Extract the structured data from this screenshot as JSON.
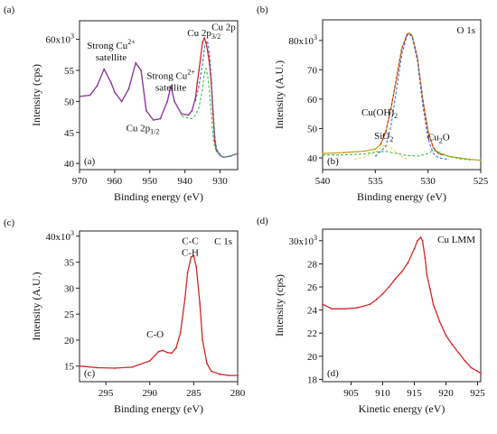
{
  "chart_data": [
    {
      "panel_label": "(a)",
      "inner_label": "(a)",
      "type": "line",
      "xlabel": "Binding energy (eV)",
      "ylabel": "Intensity (cps)",
      "y_exponent_label": "60x10",
      "y_exponent_sup": "3",
      "x_reversed": true,
      "xlim": [
        970,
        925
      ],
      "ylim": [
        39,
        63
      ],
      "x_ticks": [
        970,
        960,
        950,
        940,
        930
      ],
      "y_ticks": [
        40,
        45,
        50,
        55
      ],
      "y_top_value": 60,
      "annotations": [
        {
          "text": "Strong Cu",
          "sup": "2+",
          "line2": "satellite",
          "x": 961,
          "y": 58.5
        },
        {
          "text": "Strong Cu",
          "sup": "2+",
          "line2": "satellite",
          "x": 944,
          "y": 53.6
        },
        {
          "text": "Cu 2p",
          "sub": "1/2",
          "x": 952,
          "y": 45.2
        },
        {
          "text": "Cu 2p",
          "sub": "3/2",
          "x": 934.6,
          "y": 60.5
        },
        {
          "text": "Cu 2p",
          "x": 929,
          "y": 61.5
        }
      ],
      "series": [
        {
          "color": "#d32626",
          "x": [
            970,
            967,
            965,
            963,
            961,
            960,
            958,
            956,
            954,
            952.5,
            951,
            949,
            947,
            945,
            944,
            943,
            941,
            939,
            938,
            937,
            936.5,
            936,
            935,
            934.5,
            934,
            933.5,
            933,
            932.5,
            932,
            931.5,
            931,
            930,
            929,
            927,
            925
          ],
          "y": [
            50.8,
            51.0,
            52.5,
            55.2,
            53.0,
            51.5,
            50.0,
            52.0,
            56.2,
            55.0,
            48.5,
            47.0,
            47.2,
            50.0,
            52.5,
            50.0,
            48.0,
            47.8,
            48.5,
            50.5,
            53.0,
            55.0,
            59.5,
            60.2,
            59.5,
            58.0,
            56.0,
            53.0,
            48.0,
            43.5,
            42.0,
            41.3,
            41.0,
            41.2,
            41.6
          ]
        },
        {
          "color": "#7a3fb5",
          "x": [
            970,
            967,
            965,
            963,
            961,
            960,
            958,
            956,
            954,
            952.5,
            951,
            949,
            947,
            945,
            944,
            943,
            941,
            939,
            938,
            937
          ],
          "y": [
            50.8,
            51.0,
            52.5,
            55.2,
            53.0,
            51.5,
            50.0,
            52.0,
            56.2,
            55.0,
            48.5,
            47.0,
            47.2,
            50.0,
            52.5,
            50.0,
            48.0,
            47.8,
            48.5,
            50.5
          ]
        },
        {
          "color": "#2e8fb5",
          "x": [
            931,
            930,
            929,
            927,
            925
          ],
          "y": [
            42.0,
            41.3,
            41.0,
            41.2,
            41.6
          ]
        },
        {
          "color": "#3fbf3f",
          "x": [
            941,
            939,
            938,
            937,
            936,
            935,
            934.5,
            934,
            933.5,
            933,
            932.5,
            932,
            931.5,
            931,
            930
          ],
          "y": [
            47.7,
            47.3,
            47.2,
            47.8,
            49.0,
            52.0,
            54.5,
            55.3,
            54.0,
            51.5,
            48.0,
            44.5,
            42.5,
            42.0,
            41.5
          ]
        },
        {
          "color": "#3f6fd8",
          "x": [
            937,
            936,
            935,
            934.5,
            934,
            933.5,
            933,
            932.5,
            932,
            931.5,
            931,
            930
          ],
          "y": [
            50.0,
            52.5,
            56.0,
            58.5,
            59.8,
            59.5,
            57.5,
            54.0,
            49.0,
            44.5,
            42.3,
            41.5
          ]
        }
      ]
    },
    {
      "panel_label": "(b)",
      "inner_label": "(b)",
      "title": "O 1s",
      "type": "line",
      "xlabel": "Binding energy (eV)",
      "ylabel": "Intensity (A.U.)",
      "y_exponent_label": "80x10",
      "y_exponent_sup": "3",
      "x_reversed": true,
      "xlim": [
        540,
        525
      ],
      "ylim": [
        36,
        87
      ],
      "x_ticks": [
        540,
        535,
        530,
        525
      ],
      "y_ticks": [
        40,
        50,
        60,
        70
      ],
      "y_top_value": 80,
      "annotations": [
        {
          "text": "Cu(OH)",
          "sub": "2",
          "x": 534.6,
          "y": 54.5
        },
        {
          "text": "SiO",
          "sub": "2",
          "x": 534.2,
          "y": 46.5
        },
        {
          "text": "Cu",
          "sub": "2",
          "tail": "O",
          "x": 529.0,
          "y": 46.0
        }
      ],
      "series": [
        {
          "color": "#c8a020",
          "x": [
            540,
            538,
            536,
            535,
            534.5,
            534,
            533.5,
            533,
            532.5,
            532,
            531.8,
            531.5,
            531,
            530.5,
            530,
            529.5,
            529,
            528,
            527,
            526,
            525
          ],
          "y": [
            41.5,
            41.8,
            42.3,
            43.0,
            44.5,
            49.0,
            57.0,
            67.0,
            77.0,
            82.0,
            82.5,
            81.5,
            74.0,
            60.0,
            49.0,
            43.5,
            41.5,
            40.5,
            40.0,
            39.5,
            39.2
          ]
        },
        {
          "color": "#d32626",
          "x": [
            534.5,
            534,
            533.5,
            533,
            532.5,
            532,
            531.8,
            531.5,
            531,
            530.5,
            530,
            529.5,
            529,
            528.5
          ],
          "y": [
            44.5,
            49.0,
            57.0,
            67.0,
            77.0,
            82.0,
            82.5,
            81.5,
            74.0,
            60.0,
            49.0,
            43.5,
            41.5,
            40.8
          ]
        },
        {
          "color": "#3f6fd8",
          "x": [
            535,
            534,
            533.5,
            533,
            532.5,
            532,
            531.8,
            531.5,
            531,
            530.5,
            530,
            529.5,
            529,
            528
          ],
          "y": [
            40.5,
            44.0,
            51.0,
            63.0,
            75.0,
            81.5,
            82.3,
            81.0,
            73.0,
            58.0,
            46.5,
            41.5,
            40.0,
            39.5
          ]
        },
        {
          "color": "#3fbf3f",
          "x": [
            540,
            538,
            536,
            535,
            534,
            533,
            532,
            531,
            530,
            529.5,
            529,
            528,
            527,
            526
          ],
          "y": [
            41.0,
            41.0,
            41.3,
            42.0,
            42.2,
            41.5,
            40.8,
            40.6,
            41.5,
            42.5,
            42.0,
            40.5,
            39.7,
            39.3
          ]
        },
        {
          "color": "#f0d060",
          "x": [
            537,
            536,
            535,
            534.5,
            534,
            533.5,
            533,
            532.5,
            532
          ],
          "y": [
            39.5,
            40.3,
            42.0,
            43.5,
            44.5,
            43.5,
            42.0,
            40.5,
            39.6
          ]
        }
      ]
    },
    {
      "panel_label": "(c)",
      "inner_label": "(c)",
      "title": "C 1s",
      "type": "line",
      "xlabel": "Binding energy (eV)",
      "ylabel": "Intensity (A.U.)",
      "y_exponent_label": "40x10",
      "y_exponent_sup": "3",
      "x_reversed": true,
      "xlim": [
        298,
        280
      ],
      "ylim": [
        12,
        41
      ],
      "x_ticks": [
        295,
        290,
        285,
        280
      ],
      "y_ticks": [
        15,
        20,
        25,
        30,
        35
      ],
      "y_top_value": 40,
      "annotations": [
        {
          "text": "C-C",
          "line2": "C-H",
          "x": 285.4,
          "y": 38.5
        },
        {
          "text": "C-O",
          "x": 289.4,
          "y": 20.5
        }
      ],
      "series": [
        {
          "color": "#d32626",
          "x": [
            298,
            296,
            294,
            292,
            290,
            289,
            288.5,
            288,
            287.5,
            287,
            286.5,
            286,
            285.7,
            285.3,
            285,
            284.7,
            284.3,
            284,
            283.5,
            283,
            282,
            281,
            280
          ],
          "y": [
            15.0,
            14.7,
            14.6,
            14.8,
            16.0,
            17.8,
            18.0,
            17.6,
            17.5,
            18.5,
            21.5,
            28.0,
            33.0,
            36.0,
            36.2,
            34.0,
            27.0,
            20.0,
            15.5,
            14.0,
            13.4,
            13.2,
            13.2
          ]
        }
      ]
    },
    {
      "panel_label": "(d)",
      "inner_label": "(d)",
      "title": "Cu LMM",
      "type": "line",
      "xlabel": "Kinetic energy (eV)",
      "ylabel": "Intensity (cps)",
      "y_exponent_label": "30x10",
      "y_exponent_sup": "3",
      "x_reversed": false,
      "xlim": [
        900.5,
        925.5
      ],
      "ylim": [
        17.8,
        31.0
      ],
      "x_ticks": [
        905,
        910,
        915,
        920,
        925
      ],
      "y_ticks": [
        18,
        20,
        22,
        24,
        26,
        28
      ],
      "y_top_value": 30,
      "annotations": [],
      "series": [
        {
          "color": "#d32626",
          "x": [
            900.5,
            902,
            904,
            906,
            908,
            909,
            910,
            911,
            912,
            913,
            914,
            915,
            915.5,
            916,
            916.3,
            916.7,
            917,
            917.5,
            918,
            919,
            920,
            921,
            922,
            923,
            924,
            925,
            925.5
          ],
          "y": [
            24.5,
            24.1,
            24.1,
            24.2,
            24.5,
            24.9,
            25.4,
            26.0,
            26.7,
            27.3,
            28.1,
            29.3,
            30.0,
            30.3,
            30.0,
            28.5,
            27.0,
            25.8,
            24.5,
            23.0,
            21.8,
            21.0,
            20.3,
            19.6,
            19.0,
            18.7,
            18.5
          ]
        }
      ]
    }
  ]
}
